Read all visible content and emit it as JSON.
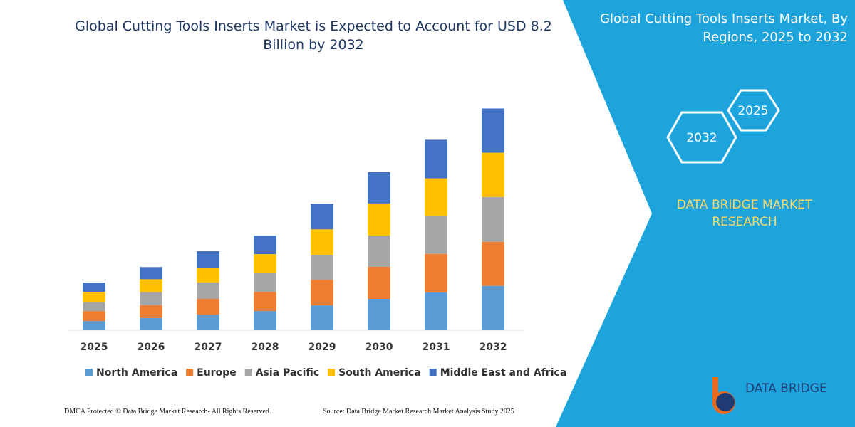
{
  "chart_data": {
    "type": "stacked-bar",
    "title": "Global Cutting Tools Inserts Market is Expected to Account for USD 8.2 Billion by 2032",
    "categories": [
      "2025",
      "2026",
      "2027",
      "2028",
      "2029",
      "2030",
      "2031",
      "2032"
    ],
    "series": [
      {
        "name": "North America",
        "color": "#5b9bd5",
        "values": [
          0.34,
          0.45,
          0.58,
          0.71,
          0.92,
          1.16,
          1.4,
          1.64
        ]
      },
      {
        "name": "Europe",
        "color": "#ed7d31",
        "values": [
          0.37,
          0.48,
          0.58,
          0.71,
          0.95,
          1.19,
          1.43,
          1.64
        ]
      },
      {
        "name": "Asia Pacific",
        "color": "#a5a5a5",
        "values": [
          0.34,
          0.48,
          0.61,
          0.69,
          0.92,
          1.16,
          1.4,
          1.66
        ]
      },
      {
        "name": "South America",
        "color": "#ffc000",
        "values": [
          0.37,
          0.48,
          0.55,
          0.71,
          0.95,
          1.19,
          1.4,
          1.64
        ]
      },
      {
        "name": "Middle East and Africa",
        "color": "#4472c4",
        "values": [
          0.34,
          0.45,
          0.61,
          0.69,
          0.95,
          1.16,
          1.43,
          1.64
        ]
      }
    ],
    "ylim": [
      0,
      10
    ],
    "legend": "bottom"
  },
  "panel": {
    "title": "Global Cutting Tools Inserts Market, By Regions, 2025 to 2032",
    "hex_top": "2025",
    "hex_bottom": "2032",
    "brand": "DATA BRIDGE MARKET RESEARCH",
    "logo": "DATA BRIDGE"
  },
  "footer": {
    "left": "DMCA Protected © Data Bridge Market Research-  All Rights Reserved.",
    "right": "Source: Data Bridge Market Research  Market Analysis Study 2025"
  }
}
